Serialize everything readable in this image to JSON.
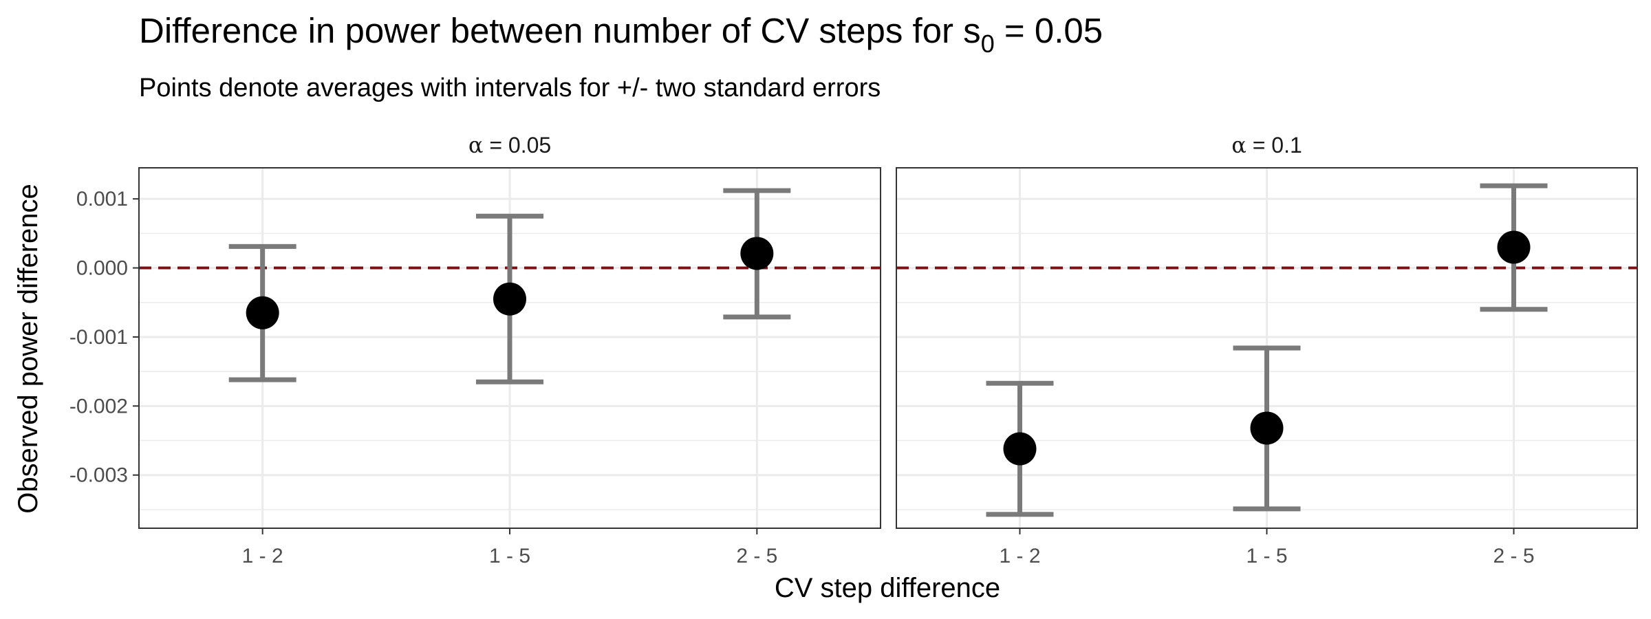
{
  "chart_data": {
    "type": "scatter",
    "title": {
      "prefix": "Difference in power between number of CV steps for s",
      "subscript": "0",
      "suffix": " = 0.05"
    },
    "subtitle": "Points denote averages with intervals for +/- two standard errors",
    "xlabel": "CV step difference",
    "ylabel": "Observed power difference",
    "categories": [
      "1 - 2",
      "1 - 5",
      "2 - 5"
    ],
    "yticks": [
      "0.001",
      "0.000",
      "-0.001",
      "-0.002",
      "-0.003"
    ],
    "ytick_values": [
      0.001,
      0.0,
      -0.001,
      -0.002,
      -0.003
    ],
    "ylim": [
      -0.00377,
      0.00145
    ],
    "reference_line": {
      "y": 0.0,
      "style": "dashed",
      "color": "#7b1113"
    },
    "grid": true,
    "colors": {
      "point": "#000000",
      "errorbar": "#7a7a7a",
      "grid": "#ebebeb",
      "border": "#333333"
    },
    "panels": [
      {
        "label": {
          "symbol": "α",
          "rest": " = 0.05"
        },
        "points": [
          {
            "x": "1 - 2",
            "mean": -0.00065,
            "lower": -0.00162,
            "upper": 0.00031
          },
          {
            "x": "1 - 5",
            "mean": -0.00045,
            "lower": -0.00165,
            "upper": 0.00075
          },
          {
            "x": "2 - 5",
            "mean": 0.00021,
            "lower": -0.00071,
            "upper": 0.00112
          }
        ]
      },
      {
        "label": {
          "symbol": "α",
          "rest": " = 0.1"
        },
        "points": [
          {
            "x": "1 - 2",
            "mean": -0.00262,
            "lower": -0.00357,
            "upper": -0.00167
          },
          {
            "x": "1 - 5",
            "mean": -0.00232,
            "lower": -0.00349,
            "upper": -0.00116
          },
          {
            "x": "2 - 5",
            "mean": 0.0003,
            "lower": -0.0006,
            "upper": 0.00119
          }
        ]
      }
    ]
  }
}
